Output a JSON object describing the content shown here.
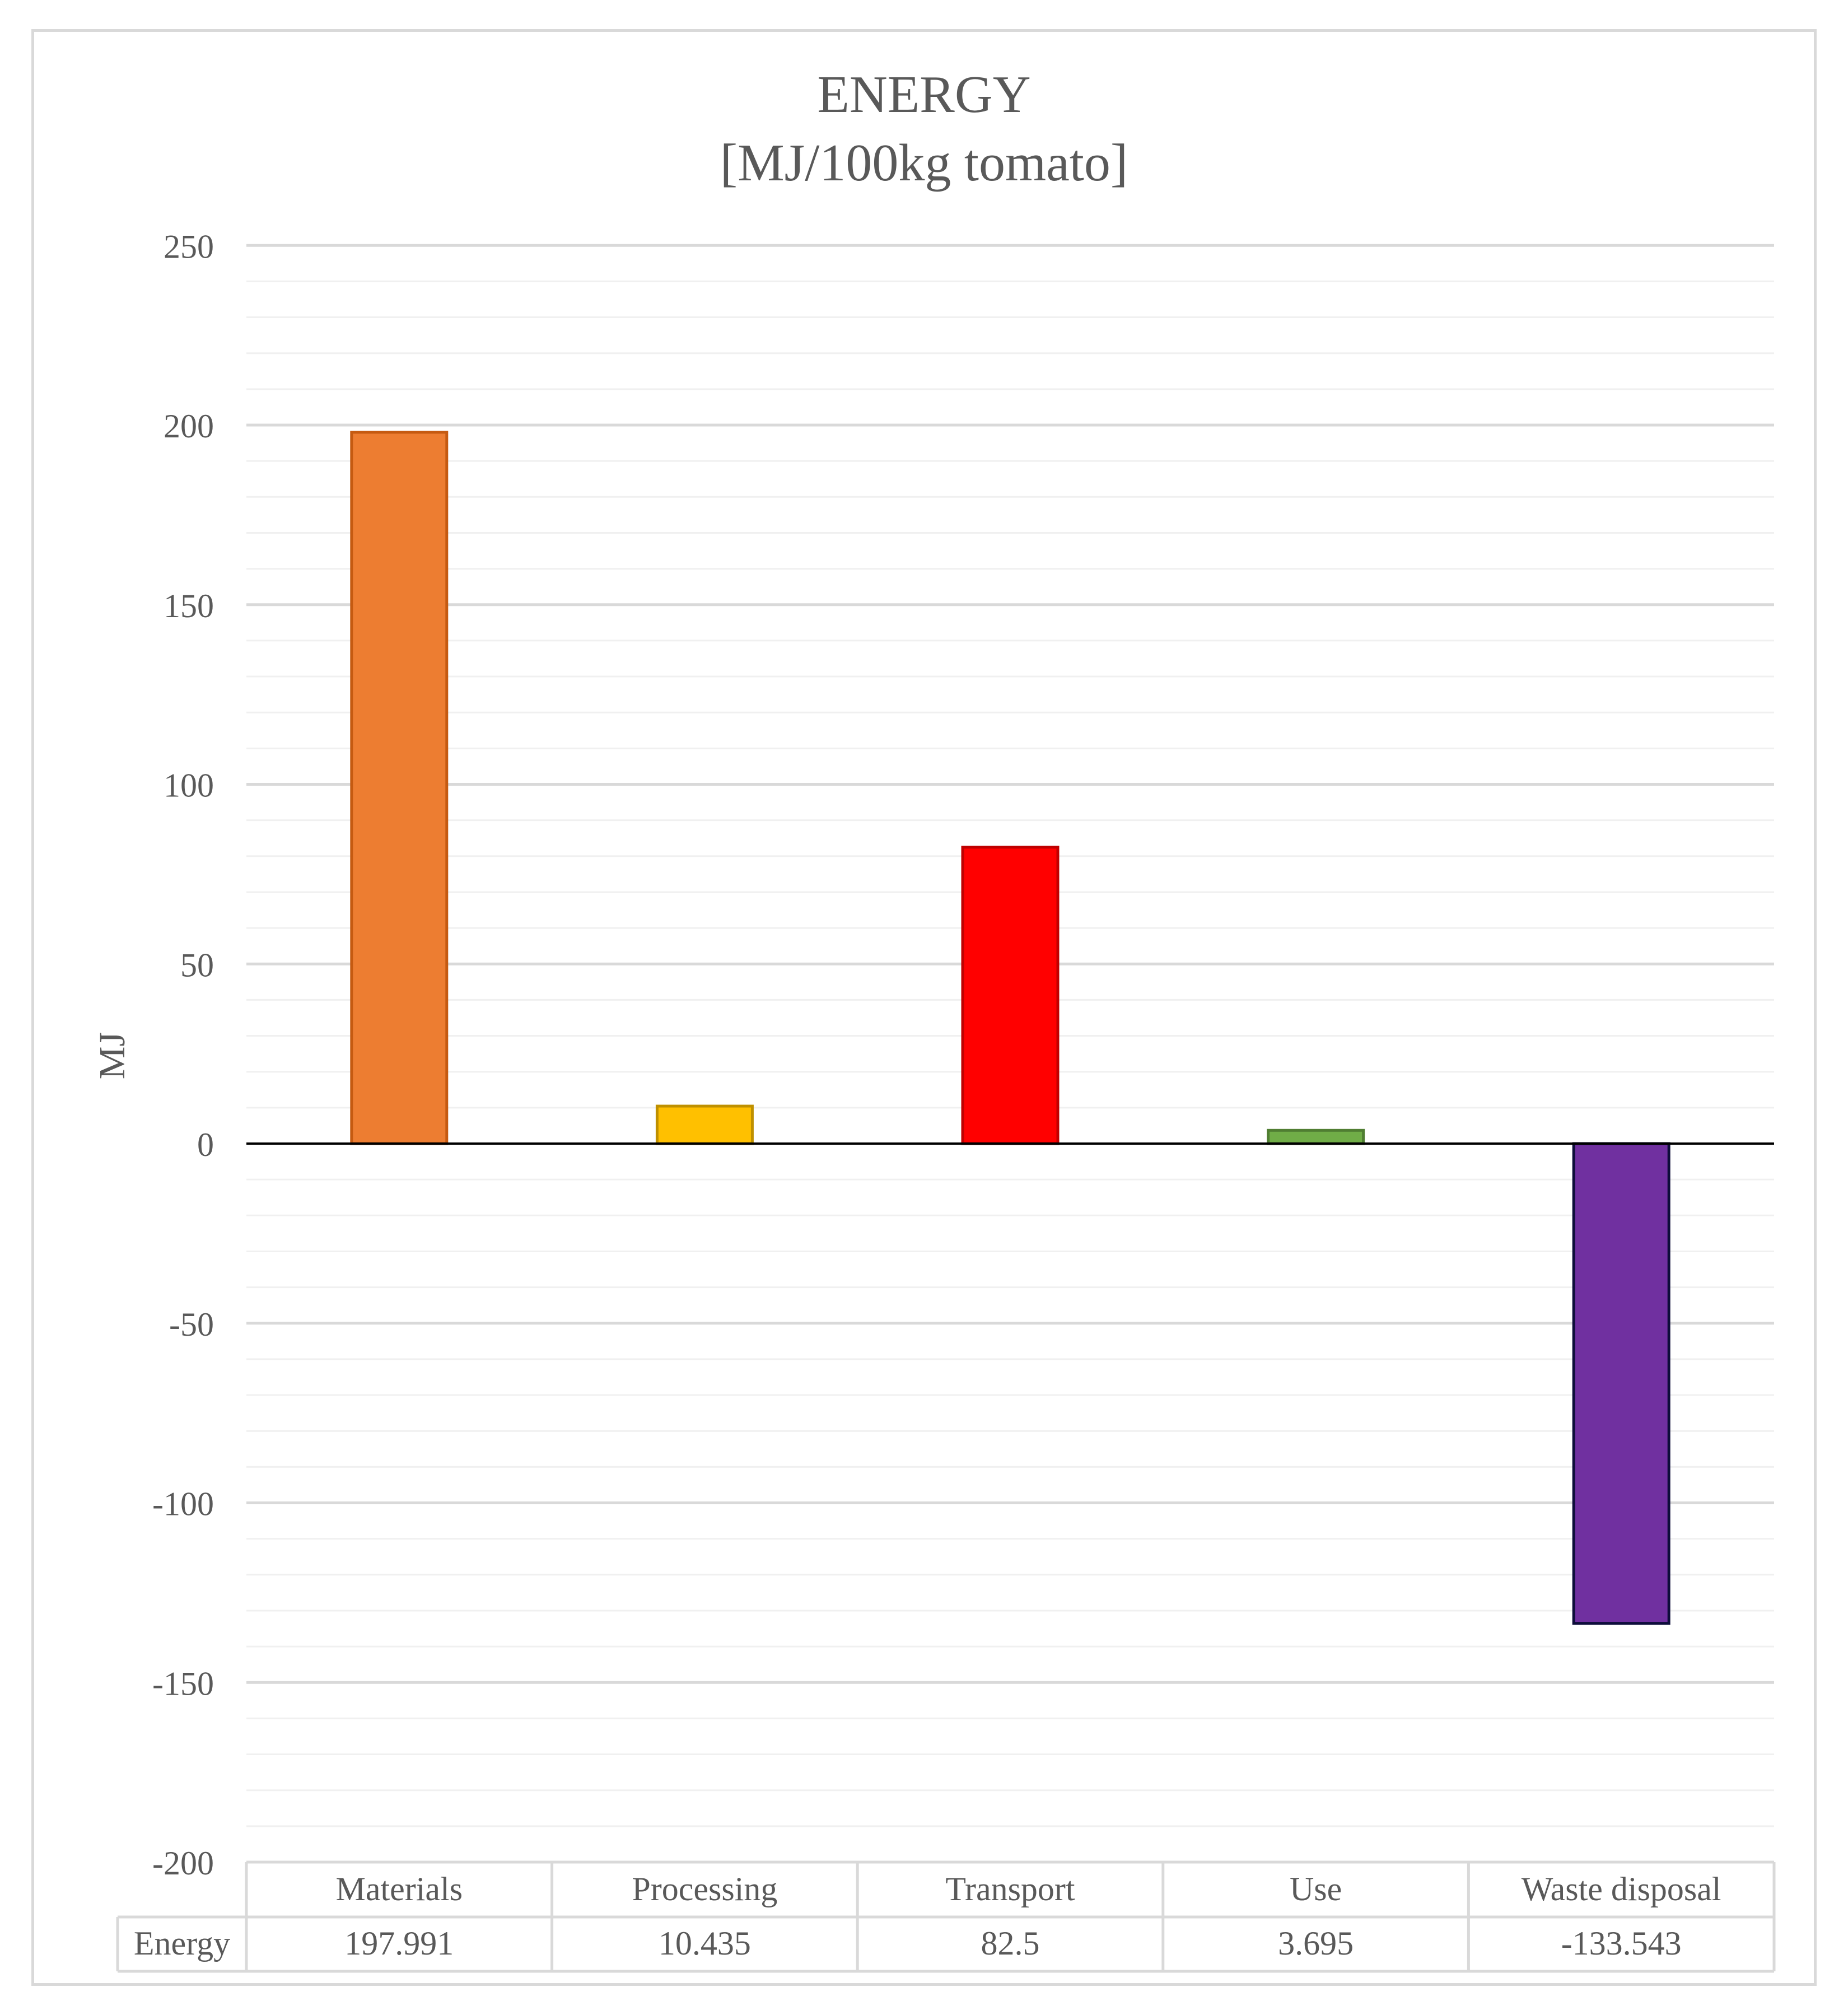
{
  "chart_data": {
    "type": "bar",
    "title": "ENERGY",
    "subtitle": "[MJ/100kg  tomato]",
    "ylabel": "MJ",
    "xlabel": "",
    "ylim": [
      -200,
      250
    ],
    "yticks": [
      250,
      200,
      150,
      100,
      50,
      0,
      -50,
      -100,
      -150,
      -200
    ],
    "major_step": 50,
    "minor_step": 10,
    "grid": true,
    "categories": [
      "Materials",
      "Processing",
      "Transport",
      "Use",
      "Waste disposal"
    ],
    "series": [
      {
        "name": "Energy",
        "values": [
          197.991,
          10.435,
          82.5,
          3.695,
          -133.543
        ]
      }
    ],
    "data_table": {
      "row_label": "Energy",
      "values": [
        "197.991",
        "10.435",
        "82.5",
        "3.695",
        "-133.543"
      ]
    },
    "bar_colors": [
      "#ed7d31",
      "#ffc000",
      "#ff0000",
      "#70ad47",
      "#7030a0"
    ],
    "bar_edge_colors": [
      "#c55a11",
      "#bf9000",
      "#c00000",
      "#507e32",
      "#0d0d3a"
    ]
  }
}
